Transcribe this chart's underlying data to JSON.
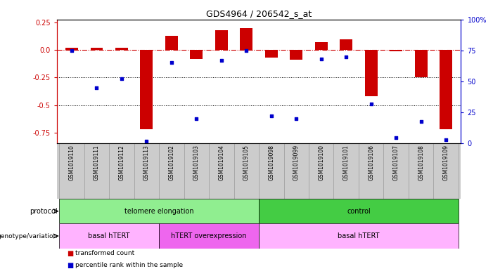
{
  "title": "GDS4964 / 206542_s_at",
  "samples": [
    "GSM1019110",
    "GSM1019111",
    "GSM1019112",
    "GSM1019113",
    "GSM1019102",
    "GSM1019103",
    "GSM1019104",
    "GSM1019105",
    "GSM1019098",
    "GSM1019099",
    "GSM1019100",
    "GSM1019101",
    "GSM1019106",
    "GSM1019107",
    "GSM1019108",
    "GSM1019109"
  ],
  "red_values": [
    0.02,
    0.02,
    0.02,
    -0.72,
    0.13,
    -0.08,
    0.18,
    0.2,
    -0.07,
    -0.09,
    0.07,
    0.1,
    -0.42,
    -0.01,
    -0.25,
    -0.72
  ],
  "blue_values_pct": [
    75,
    45,
    52,
    2,
    65,
    20,
    67,
    75,
    22,
    20,
    68,
    70,
    32,
    5,
    18,
    3
  ],
  "ylim_left": [
    -0.85,
    0.28
  ],
  "ylim_right": [
    0,
    100
  ],
  "yticks_left": [
    -0.75,
    -0.5,
    -0.25,
    0.0,
    0.25
  ],
  "yticks_right": [
    0,
    25,
    50,
    75,
    100
  ],
  "hline_y": 0.0,
  "dotted_lines": [
    -0.25,
    -0.5
  ],
  "protocol_groups": [
    {
      "label": "telomere elongation",
      "start": 0,
      "end": 7,
      "color": "#90EE90"
    },
    {
      "label": "control",
      "start": 8,
      "end": 15,
      "color": "#44CC44"
    }
  ],
  "genotype_groups": [
    {
      "label": "basal hTERT",
      "start": 0,
      "end": 3,
      "color": "#FFB3FF"
    },
    {
      "label": "hTERT overexpression",
      "start": 4,
      "end": 7,
      "color": "#EE66EE"
    },
    {
      "label": "basal hTERT",
      "start": 8,
      "end": 15,
      "color": "#FFB3FF"
    }
  ],
  "bar_color": "#CC0000",
  "dot_color": "#0000CC",
  "legend_red_label": "transformed count",
  "legend_blue_label": "percentile rank within the sample",
  "bg_color": "#FFFFFF",
  "plot_bg_color": "#FFFFFF",
  "right_axis_color": "#0000CC",
  "left_axis_color": "#CC0000",
  "col_bg_color": "#CCCCCC",
  "col_edge_color": "#999999"
}
